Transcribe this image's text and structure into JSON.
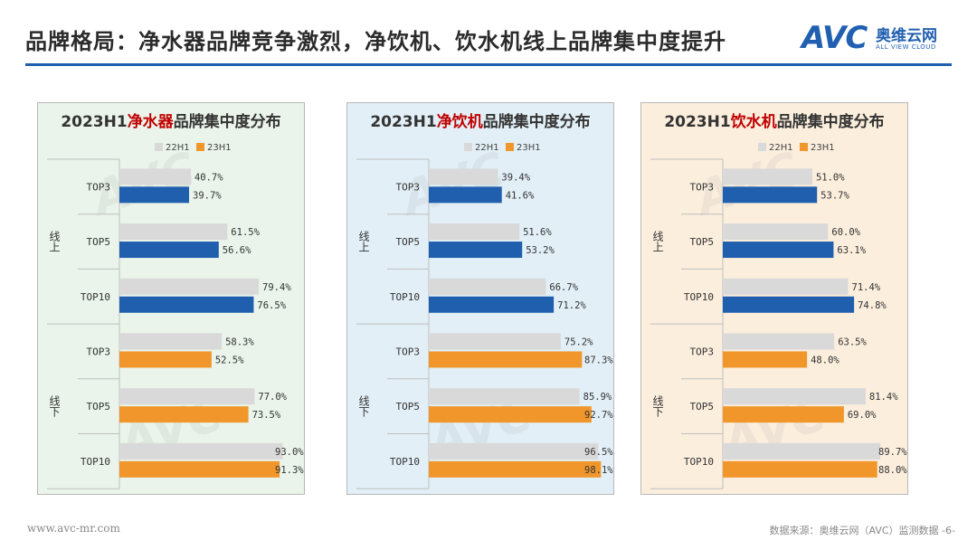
{
  "page": {
    "title": "品牌格局：净水器品牌竞争激烈，净饮机、饮水机线上品牌集中度提升",
    "logo_brand": "AVC",
    "logo_cn": "奥维云网",
    "logo_en": "ALL VIEW CLOUD",
    "footer_left": "www.avc-mr.com",
    "footer_right": "数据来源：奥维云网（AVC）监测数据",
    "page_number": "-6-"
  },
  "colors": {
    "bar_22h1": "#d9d9d9",
    "bar_23h1_online": "#1f5fae",
    "bar_23h1_offline": "#f0962b",
    "title_highlight": "#c00000",
    "rule": "#1f5fae"
  },
  "chart_data": [
    {
      "type": "bar",
      "orientation": "horizontal",
      "title_prefix": "2023H1",
      "title_highlight": "净水器",
      "title_suffix": "品牌集中度分布",
      "legend": [
        "22H1",
        "23H1"
      ],
      "groups": [
        {
          "label": "线上",
          "categories": [
            "TOP3",
            "TOP5",
            "TOP10"
          ]
        },
        {
          "label": "线下",
          "categories": [
            "TOP3",
            "TOP5",
            "TOP10"
          ]
        }
      ],
      "categories": [
        "TOP3",
        "TOP5",
        "TOP10",
        "TOP3",
        "TOP5",
        "TOP10"
      ],
      "series": [
        {
          "name": "22H1",
          "values": [
            40.7,
            61.5,
            79.4,
            58.3,
            77.0,
            93.0
          ]
        },
        {
          "name": "23H1",
          "values": [
            39.7,
            56.6,
            76.5,
            52.5,
            73.5,
            91.3
          ]
        }
      ],
      "value_labels_22H1": [
        "40.7%",
        "61.5%",
        "79.4%",
        "58.3%",
        "77.0%",
        "93.0%"
      ],
      "value_labels_23H1": [
        "39.7%",
        "56.6%",
        "76.5%",
        "52.5%",
        "73.5%",
        "91.3%"
      ],
      "xlim": [
        0,
        100
      ]
    },
    {
      "type": "bar",
      "orientation": "horizontal",
      "title_prefix": "2023H1",
      "title_highlight": "净饮机",
      "title_suffix": "品牌集中度分布",
      "legend": [
        "22H1",
        "23H1"
      ],
      "groups": [
        {
          "label": "线上",
          "categories": [
            "TOP3",
            "TOP5",
            "TOP10"
          ]
        },
        {
          "label": "线下",
          "categories": [
            "TOP3",
            "TOP5",
            "TOP10"
          ]
        }
      ],
      "categories": [
        "TOP3",
        "TOP5",
        "TOP10",
        "TOP3",
        "TOP5",
        "TOP10"
      ],
      "series": [
        {
          "name": "22H1",
          "values": [
            39.4,
            51.6,
            66.7,
            75.2,
            85.9,
            96.5
          ]
        },
        {
          "name": "23H1",
          "values": [
            41.6,
            53.2,
            71.2,
            87.3,
            92.7,
            98.1
          ]
        }
      ],
      "value_labels_22H1": [
        "39.4%",
        "51.6%",
        "66.7%",
        "75.2%",
        "85.9%",
        "96.5%"
      ],
      "value_labels_23H1": [
        "41.6%",
        "53.2%",
        "71.2%",
        "87.3%",
        "92.7%",
        "98.1%"
      ],
      "xlim": [
        0,
        100
      ]
    },
    {
      "type": "bar",
      "orientation": "horizontal",
      "title_prefix": "2023H1",
      "title_highlight": "饮水机",
      "title_suffix": "品牌集中度分布",
      "legend": [
        "22H1",
        "23H1"
      ],
      "groups": [
        {
          "label": "线上",
          "categories": [
            "TOP3",
            "TOP5",
            "TOP10"
          ]
        },
        {
          "label": "线下",
          "categories": [
            "TOP3",
            "TOP5",
            "TOP10"
          ]
        }
      ],
      "categories": [
        "TOP3",
        "TOP5",
        "TOP10",
        "TOP3",
        "TOP5",
        "TOP10"
      ],
      "series": [
        {
          "name": "22H1",
          "values": [
            51.0,
            60.0,
            71.4,
            63.5,
            81.4,
            89.7
          ]
        },
        {
          "name": "23H1",
          "values": [
            53.7,
            63.1,
            74.8,
            48.0,
            69.0,
            88.0
          ]
        }
      ],
      "value_labels_22H1": [
        "51.0%",
        "60.0%",
        "71.4%",
        "63.5%",
        "81.4%",
        "89.7%"
      ],
      "value_labels_23H1": [
        "53.7%",
        "63.1%",
        "74.8%",
        "48.0%",
        "69.0%",
        "88.0%"
      ],
      "xlim": [
        0,
        100
      ]
    }
  ]
}
